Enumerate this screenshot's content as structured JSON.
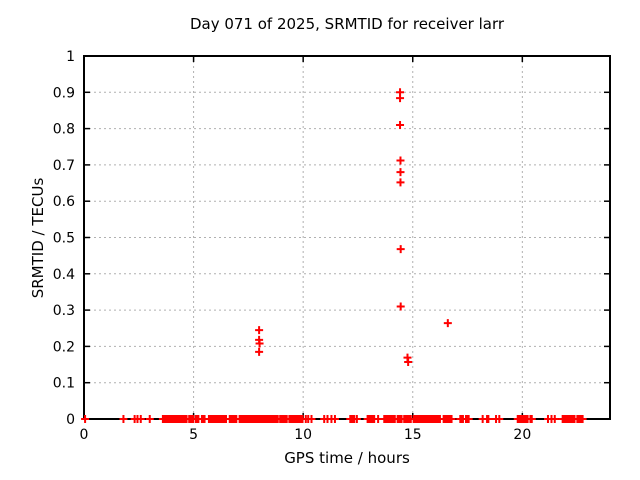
{
  "window": {
    "background": "#ffffff"
  },
  "chart_data": {
    "type": "scatter",
    "title": "Day 071 of 2025, SRMTID for receiver larr",
    "xlabel": "GPS time / hours",
    "ylabel": "SRMTID / TECUs",
    "xlim": [
      0,
      24
    ],
    "ylim": [
      0,
      1
    ],
    "xticks": [
      0,
      5,
      10,
      15,
      20
    ],
    "xtick_labels": [
      "0",
      "5",
      "10",
      "15",
      "20"
    ],
    "yticks": [
      0,
      0.1,
      0.2,
      0.3,
      0.4,
      0.5,
      0.6,
      0.7,
      0.8,
      0.9,
      1
    ],
    "ytick_labels": [
      "0",
      "0.1",
      "0.2",
      "0.3",
      "0.4",
      "0.5",
      "0.6",
      "0.7",
      "0.8",
      "0.9",
      "1"
    ],
    "grid": true,
    "grid_style": "dashed",
    "legend": "none",
    "marker": "plus",
    "colors": {
      "points": "#ff0000",
      "grid": "#b0b0b0",
      "axis": "#000000",
      "background": "#ffffff"
    },
    "series": [
      {
        "name": "SRMTID",
        "points": [
          [
            7.99,
            0.245
          ],
          [
            7.99,
            0.218
          ],
          [
            8.01,
            0.208
          ],
          [
            7.99,
            0.185
          ],
          [
            14.42,
            0.9
          ],
          [
            14.42,
            0.884
          ],
          [
            14.42,
            0.81
          ],
          [
            14.44,
            0.712
          ],
          [
            14.44,
            0.68
          ],
          [
            14.44,
            0.652
          ],
          [
            14.45,
            0.468
          ],
          [
            14.45,
            0.31
          ],
          [
            14.76,
            0.169
          ],
          [
            14.79,
            0.157
          ],
          [
            16.6,
            0.264
          ]
        ]
      }
    ],
    "baseline": {
      "value": 0,
      "marker_spacing_hours": 0.06,
      "singles": [
        0.05,
        1.8,
        2.31,
        2.44,
        2.59,
        3.0,
        10.12,
        10.23,
        10.38,
        10.96,
        11.11,
        11.29,
        11.45,
        12.45,
        13.42,
        18.19,
        18.8,
        18.95,
        21.17,
        21.33,
        21.48
      ],
      "intervals": [
        [
          3.6,
          4.72
        ],
        [
          4.8,
          5.0
        ],
        [
          5.1,
          5.27
        ],
        [
          5.38,
          5.55
        ],
        [
          5.7,
          6.5
        ],
        [
          6.65,
          6.95
        ],
        [
          7.1,
          8.85
        ],
        [
          8.95,
          9.28
        ],
        [
          9.37,
          9.97
        ],
        [
          12.15,
          12.33
        ],
        [
          12.94,
          13.24
        ],
        [
          13.7,
          14.23
        ],
        [
          14.31,
          14.49
        ],
        [
          14.61,
          14.92
        ],
        [
          15.04,
          16.29
        ],
        [
          16.41,
          16.82
        ],
        [
          17.17,
          17.32
        ],
        [
          17.43,
          17.58
        ],
        [
          18.39,
          18.49
        ],
        [
          19.79,
          19.91
        ],
        [
          19.97,
          20.06
        ],
        [
          20.12,
          20.24
        ],
        [
          20.37,
          20.46
        ],
        [
          21.84,
          22.42
        ],
        [
          22.51,
          22.8
        ]
      ]
    }
  }
}
